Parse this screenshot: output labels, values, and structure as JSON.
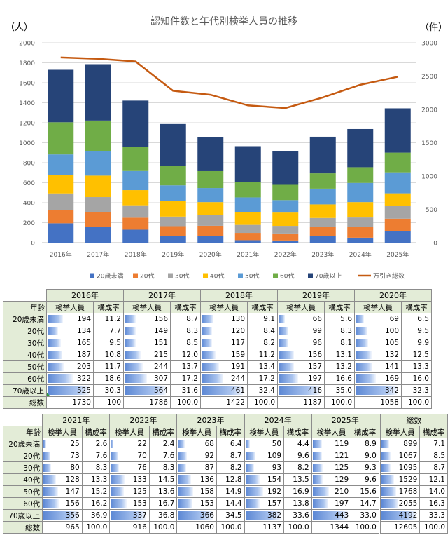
{
  "chart_data": {
    "type": "bar",
    "title": "認知件数と年代別検挙人員の推移",
    "y_left_unit": "（人）",
    "y_right_unit": "（件）",
    "y_left_ticks": [
      "0",
      "200",
      "400",
      "600",
      "800",
      "1000",
      "1200",
      "1400",
      "1600",
      "1800",
      "2000"
    ],
    "y_right_ticks": [
      "0",
      "500",
      "1000",
      "1500",
      "2000",
      "2500",
      "3000"
    ],
    "ylim_left": [
      0,
      2000
    ],
    "ylim_right": [
      0,
      3000
    ],
    "categories": [
      "2016年",
      "2017年",
      "2018年",
      "2019年",
      "2020年",
      "2021年",
      "2022年",
      "2023年",
      "2024年",
      "2025年"
    ],
    "series": [
      {
        "name": "20歳未満",
        "color": "#4472c4",
        "values": [
          194,
          156,
          130,
          66,
          69,
          25,
          22,
          68,
          50,
          119
        ]
      },
      {
        "name": "20代",
        "color": "#ed7d31",
        "values": [
          134,
          149,
          120,
          99,
          100,
          73,
          70,
          92,
          109,
          121
        ]
      },
      {
        "name": "30代",
        "color": "#a5a5a5",
        "values": [
          165,
          151,
          117,
          96,
          105,
          80,
          76,
          87,
          93,
          125
        ]
      },
      {
        "name": "40代",
        "color": "#ffc000",
        "values": [
          187,
          215,
          159,
          156,
          132,
          128,
          133,
          136,
          154,
          129
        ]
      },
      {
        "name": "50代",
        "color": "#5b9bd5",
        "values": [
          203,
          244,
          191,
          157,
          141,
          147,
          125,
          158,
          192,
          210
        ]
      },
      {
        "name": "60代",
        "color": "#70ad47",
        "values": [
          322,
          307,
          244,
          197,
          169,
          156,
          153,
          153,
          157,
          197
        ]
      },
      {
        "name": "70歳以上",
        "color": "#264478",
        "values": [
          525,
          564,
          461,
          416,
          342,
          356,
          337,
          366,
          382,
          443
        ]
      }
    ],
    "line": {
      "name": "万引き総数",
      "color": "#c55a11",
      "values": [
        2780,
        2760,
        2720,
        2280,
        2220,
        2060,
        2020,
        2180,
        2370,
        2490
      ]
    },
    "legend_position": "bottom"
  },
  "table_labels": {
    "age": "年齢",
    "count": "検挙人員",
    "ratio": "構成率",
    "total_col": "総数",
    "total_row": "総数"
  },
  "age_groups": [
    "20歳未満",
    "20代",
    "30代",
    "40代",
    "50代",
    "60代",
    "70歳以上"
  ],
  "table1": [
    {
      "year": "2016年",
      "counts": [
        "194",
        "134",
        "165",
        "187",
        "203",
        "322",
        "525"
      ],
      "ratios": [
        "11.2",
        "7.7",
        "9.5",
        "10.8",
        "11.7",
        "18.6",
        "30.3"
      ],
      "total": "1730",
      "total_ratio": "100"
    },
    {
      "year": "2017年",
      "counts": [
        "156",
        "149",
        "151",
        "215",
        "244",
        "307",
        "564"
      ],
      "ratios": [
        "8.7",
        "8.3",
        "8.5",
        "12.0",
        "13.7",
        "17.2",
        "31.6"
      ],
      "total": "1786",
      "total_ratio": "100.0"
    },
    {
      "year": "2018年",
      "counts": [
        "130",
        "120",
        "117",
        "159",
        "191",
        "244",
        "461"
      ],
      "ratios": [
        "9.1",
        "8.4",
        "8.2",
        "11.2",
        "13.4",
        "17.2",
        "32.4"
      ],
      "total": "1422",
      "total_ratio": "100.0"
    },
    {
      "year": "2019年",
      "counts": [
        "66",
        "99",
        "96",
        "156",
        "157",
        "197",
        "416"
      ],
      "ratios": [
        "5.6",
        "8.3",
        "8.1",
        "13.1",
        "13.2",
        "16.6",
        "35.0"
      ],
      "total": "1187",
      "total_ratio": "100.0"
    },
    {
      "year": "2020年",
      "counts": [
        "69",
        "100",
        "105",
        "132",
        "141",
        "169",
        "342"
      ],
      "ratios": [
        "6.5",
        "9.5",
        "9.9",
        "12.5",
        "13.3",
        "16.0",
        "32.3"
      ],
      "total": "1058",
      "total_ratio": "100.0"
    }
  ],
  "table2": [
    {
      "year": "2021年",
      "counts": [
        "25",
        "73",
        "80",
        "128",
        "147",
        "156",
        "356"
      ],
      "ratios": [
        "2.6",
        "7.6",
        "8.3",
        "13.3",
        "15.2",
        "16.2",
        "36.9"
      ],
      "total": "965",
      "total_ratio": "100.0"
    },
    {
      "year": "2022年",
      "counts": [
        "22",
        "70",
        "76",
        "133",
        "125",
        "153",
        "337"
      ],
      "ratios": [
        "2.4",
        "7.6",
        "8.3",
        "14.5",
        "13.6",
        "16.7",
        "36.8"
      ],
      "total": "916",
      "total_ratio": "100.0"
    },
    {
      "year": "2023年",
      "counts": [
        "68",
        "92",
        "87",
        "136",
        "158",
        "153",
        "366"
      ],
      "ratios": [
        "6.4",
        "8.7",
        "8.2",
        "12.8",
        "14.9",
        "14.4",
        "34.5"
      ],
      "total": "1060",
      "total_ratio": "100.0"
    },
    {
      "year": "2024年",
      "counts": [
        "50",
        "109",
        "93",
        "154",
        "192",
        "157",
        "382"
      ],
      "ratios": [
        "4.4",
        "9.6",
        "8.2",
        "13.5",
        "16.9",
        "13.8",
        "33.6"
      ],
      "total": "1137",
      "total_ratio": "100.0"
    },
    {
      "year": "2025年",
      "counts": [
        "119",
        "121",
        "125",
        "129",
        "210",
        "197",
        "443"
      ],
      "ratios": [
        "8.9",
        "9.0",
        "9.3",
        "9.6",
        "15.6",
        "14.7",
        "33.0"
      ],
      "total": "1344",
      "total_ratio": "100.0"
    },
    {
      "year": "総数",
      "counts": [
        "899",
        "1067",
        "1095",
        "1529",
        "1768",
        "2055",
        "4192"
      ],
      "ratios": [
        "7.1",
        "8.5",
        "8.7",
        "12.1",
        "14.0",
        "16.3",
        "33.3"
      ],
      "total": "12605",
      "total_ratio": "100.0"
    }
  ]
}
